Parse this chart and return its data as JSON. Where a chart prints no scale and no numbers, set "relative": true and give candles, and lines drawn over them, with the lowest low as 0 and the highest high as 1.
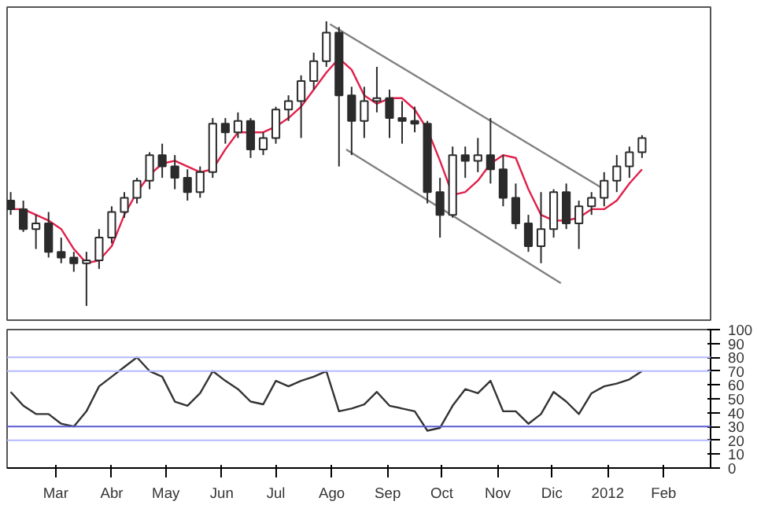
{
  "chart_data": [
    {
      "type": "candlestick",
      "relative": true,
      "color": "#2b2b2b",
      "tick_labels": false,
      "xlim": [
        "2011-02-02",
        "2012-02-27"
      ],
      "x": [
        "2011-02-04",
        "2011-02-11",
        "2011-02-18",
        "2011-02-25",
        "2011-03-04",
        "2011-03-11",
        "2011-03-18",
        "2011-03-25",
        "2011-04-01",
        "2011-04-08",
        "2011-04-15",
        "2011-04-22",
        "2011-04-29",
        "2011-05-06",
        "2011-05-13",
        "2011-05-20",
        "2011-05-27",
        "2011-06-03",
        "2011-06-10",
        "2011-06-17",
        "2011-06-24",
        "2011-07-01",
        "2011-07-08",
        "2011-07-15",
        "2011-07-22",
        "2011-07-29",
        "2011-08-05",
        "2011-08-12",
        "2011-08-19",
        "2011-08-26",
        "2011-09-02",
        "2011-09-09",
        "2011-09-16",
        "2011-09-23",
        "2011-09-30",
        "2011-10-07",
        "2011-10-14",
        "2011-10-21",
        "2011-10-28",
        "2011-11-04",
        "2011-11-11",
        "2011-11-18",
        "2011-11-25",
        "2011-12-02",
        "2011-12-09",
        "2011-12-16",
        "2011-12-23",
        "2011-12-30",
        "2012-01-06",
        "2012-01-13",
        "2012-01-20"
      ],
      "ohlc": [
        [
          0.37,
          0.4,
          0.32,
          0.34
        ],
        [
          0.34,
          0.37,
          0.26,
          0.27
        ],
        [
          0.27,
          0.32,
          0.2,
          0.29
        ],
        [
          0.29,
          0.33,
          0.17,
          0.19
        ],
        [
          0.19,
          0.24,
          0.15,
          0.17
        ],
        [
          0.17,
          0.19,
          0.12,
          0.15
        ],
        [
          0.15,
          0.19,
          0,
          0.16
        ],
        [
          0.16,
          0.27,
          0.13,
          0.24
        ],
        [
          0.24,
          0.35,
          0.22,
          0.33
        ],
        [
          0.33,
          0.4,
          0.31,
          0.38
        ],
        [
          0.38,
          0.45,
          0.36,
          0.44
        ],
        [
          0.44,
          0.54,
          0.41,
          0.53
        ],
        [
          0.53,
          0.57,
          0.45,
          0.49
        ],
        [
          0.49,
          0.53,
          0.41,
          0.45
        ],
        [
          0.45,
          0.48,
          0.37,
          0.4
        ],
        [
          0.4,
          0.49,
          0.38,
          0.47
        ],
        [
          0.47,
          0.66,
          0.45,
          0.64
        ],
        [
          0.64,
          0.66,
          0.57,
          0.61
        ],
        [
          0.61,
          0.68,
          0.59,
          0.65
        ],
        [
          0.65,
          0.66,
          0.52,
          0.55
        ],
        [
          0.55,
          0.61,
          0.53,
          0.59
        ],
        [
          0.59,
          0.7,
          0.57,
          0.69
        ],
        [
          0.69,
          0.74,
          0.65,
          0.72
        ],
        [
          0.72,
          0.81,
          0.59,
          0.79
        ],
        [
          0.79,
          0.89,
          0.76,
          0.86
        ],
        [
          0.86,
          1,
          0.84,
          0.96
        ],
        [
          0.96,
          0.98,
          0.49,
          0.74
        ],
        [
          0.74,
          0.77,
          0.53,
          0.65
        ],
        [
          0.65,
          0.77,
          0.59,
          0.72
        ],
        [
          0.72,
          0.84,
          0.68,
          0.73
        ],
        [
          0.73,
          0.76,
          0.59,
          0.66
        ],
        [
          0.66,
          0.72,
          0.57,
          0.65
        ],
        [
          0.65,
          0.7,
          0.61,
          0.64
        ],
        [
          0.64,
          0.65,
          0.36,
          0.4
        ],
        [
          0.4,
          0.45,
          0.24,
          0.32
        ],
        [
          0.32,
          0.56,
          0.31,
          0.53
        ],
        [
          0.53,
          0.56,
          0.45,
          0.51
        ],
        [
          0.51,
          0.59,
          0.47,
          0.53
        ],
        [
          0.53,
          0.66,
          0.43,
          0.48
        ],
        [
          0.48,
          0.53,
          0.35,
          0.38
        ],
        [
          0.38,
          0.43,
          0.27,
          0.29
        ],
        [
          0.29,
          0.32,
          0.19,
          0.21
        ],
        [
          0.21,
          0.4,
          0.15,
          0.27
        ],
        [
          0.27,
          0.41,
          0.24,
          0.4
        ],
        [
          0.4,
          0.43,
          0.27,
          0.29
        ],
        [
          0.29,
          0.37,
          0.2,
          0.35
        ],
        [
          0.35,
          0.4,
          0.32,
          0.38
        ],
        [
          0.38,
          0.47,
          0.35,
          0.44
        ],
        [
          0.44,
          0.53,
          0.4,
          0.49
        ],
        [
          0.49,
          0.56,
          0.45,
          0.54
        ],
        [
          0.54,
          0.6,
          0.52,
          0.59
        ]
      ],
      "series": [
        {
          "type": "line",
          "color": "#e0204a",
          "x": [
            "2011-02-04",
            "2011-02-11",
            "2011-02-18",
            "2011-02-25",
            "2011-03-04",
            "2011-03-11",
            "2011-03-18",
            "2011-03-25",
            "2011-04-01",
            "2011-04-08",
            "2011-04-15",
            "2011-04-22",
            "2011-04-29",
            "2011-05-06",
            "2011-05-13",
            "2011-05-20",
            "2011-05-27",
            "2011-06-03",
            "2011-06-10",
            "2011-06-17",
            "2011-06-24",
            "2011-07-01",
            "2011-07-08",
            "2011-07-15",
            "2011-07-22",
            "2011-07-29",
            "2011-08-05",
            "2011-08-12",
            "2011-08-19",
            "2011-08-26",
            "2011-09-02",
            "2011-09-09",
            "2011-09-16",
            "2011-09-23",
            "2011-09-30",
            "2011-10-07",
            "2011-10-14",
            "2011-10-21",
            "2011-10-28",
            "2011-11-04",
            "2011-11-11",
            "2011-11-18",
            "2011-11-25",
            "2011-12-02",
            "2011-12-09",
            "2011-12-16",
            "2011-12-23",
            "2011-12-30",
            "2012-01-06",
            "2012-01-13",
            "2012-01-20"
          ],
          "values": [
            0.34,
            0.34,
            0.32,
            0.3,
            0.27,
            0.2,
            0.15,
            0.16,
            0.21,
            0.32,
            0.4,
            0.46,
            0.5,
            0.51,
            0.49,
            0.47,
            0.48,
            0.55,
            0.61,
            0.61,
            0.61,
            0.63,
            0.66,
            0.7,
            0.76,
            0.82,
            0.87,
            0.83,
            0.74,
            0.71,
            0.73,
            0.73,
            0.69,
            0.62,
            0.51,
            0.39,
            0.4,
            0.44,
            0.5,
            0.53,
            0.52,
            0.41,
            0.32,
            0.3,
            0.3,
            0.31,
            0.34,
            0.34,
            0.37,
            0.43,
            0.48
          ]
        },
        {
          "type": "line",
          "color": "#808080",
          "x": [
            "2011-07-31",
            "2011-12-30"
          ],
          "values": [
            0.99,
            0.41
          ]
        },
        {
          "type": "line",
          "color": "#808080",
          "x": [
            "2011-08-09",
            "2011-12-06"
          ],
          "values": [
            0.55,
            0.08
          ]
        }
      ]
    },
    {
      "type": "line",
      "color": "#333333",
      "xlim": [
        "2011-02-02",
        "2012-02-27"
      ],
      "xticks": [
        {
          "value": "2011-03-01",
          "label": "Mar"
        },
        {
          "value": "2011-04-01",
          "label": "Abr"
        },
        {
          "value": "2011-05-01",
          "label": "May"
        },
        {
          "value": "2011-06-01",
          "label": "Jun"
        },
        {
          "value": "2011-07-01",
          "label": "Jul"
        },
        {
          "value": "2011-08-01",
          "label": "Ago"
        },
        {
          "value": "2011-09-01",
          "label": "Sep"
        },
        {
          "value": "2011-10-01",
          "label": "Oct"
        },
        {
          "value": "2011-11-01",
          "label": "Nov"
        },
        {
          "value": "2011-12-01",
          "label": "Dic"
        },
        {
          "value": "2012-01-01",
          "label": "2012"
        },
        {
          "value": "2012-02-01",
          "label": "Feb"
        }
      ],
      "ylim": [
        0,
        100
      ],
      "yticks": [
        0,
        10,
        20,
        30,
        40,
        50,
        60,
        70,
        80,
        90,
        100
      ],
      "x": [
        "2011-02-04",
        "2011-02-11",
        "2011-02-18",
        "2011-02-25",
        "2011-03-04",
        "2011-03-11",
        "2011-03-18",
        "2011-03-25",
        "2011-04-01",
        "2011-04-08",
        "2011-04-15",
        "2011-04-22",
        "2011-04-29",
        "2011-05-06",
        "2011-05-13",
        "2011-05-20",
        "2011-05-27",
        "2011-06-03",
        "2011-06-10",
        "2011-06-17",
        "2011-06-24",
        "2011-07-01",
        "2011-07-08",
        "2011-07-15",
        "2011-07-22",
        "2011-07-29",
        "2011-08-05",
        "2011-08-12",
        "2011-08-19",
        "2011-08-26",
        "2011-09-02",
        "2011-09-09",
        "2011-09-16",
        "2011-09-23",
        "2011-09-30",
        "2011-10-07",
        "2011-10-14",
        "2011-10-21",
        "2011-10-28",
        "2011-11-04",
        "2011-11-11",
        "2011-11-18",
        "2011-11-25",
        "2011-12-02",
        "2011-12-09",
        "2011-12-16",
        "2011-12-23",
        "2011-12-30",
        "2012-01-06",
        "2012-01-13",
        "2012-01-20"
      ],
      "values": [
        55,
        45,
        39,
        39,
        32,
        30,
        41,
        59,
        66,
        73,
        80,
        70,
        66,
        48,
        45,
        54,
        70,
        63,
        57,
        48,
        46,
        63,
        59,
        63,
        66,
        70,
        41,
        43,
        46,
        55,
        45,
        43,
        41,
        27,
        29,
        45,
        57,
        54,
        63,
        41,
        41,
        32,
        39,
        55,
        48,
        39,
        54,
        59,
        61,
        64,
        70
      ],
      "ref_lines": [
        {
          "axis": "y",
          "value": 80,
          "color": "#b4b8ff"
        },
        {
          "axis": "y",
          "value": 70,
          "color": "#b4b8ff"
        },
        {
          "axis": "y",
          "value": 30,
          "color": "#5a5ad0"
        },
        {
          "axis": "y",
          "value": 20,
          "color": "#b4b8ff"
        }
      ]
    }
  ]
}
